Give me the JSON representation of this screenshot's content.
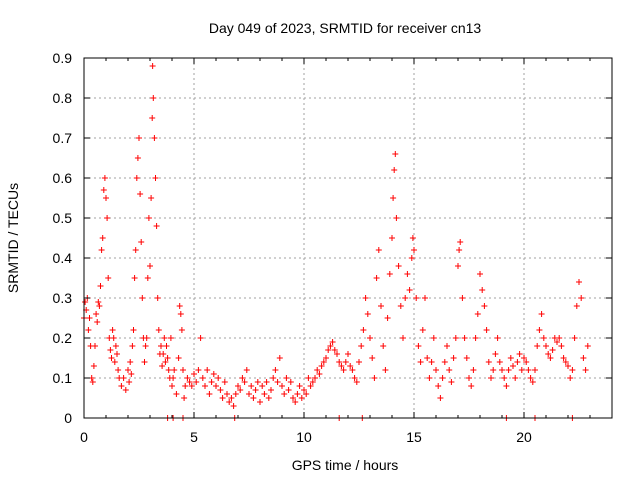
{
  "chart_data": {
    "type": "scatter",
    "title": "Day 049 of 2023, SRMTID for receiver cn13",
    "xlabel": "GPS time / hours",
    "ylabel": "SRMTID / TECUs",
    "xlim": [
      0,
      24
    ],
    "ylim": [
      0,
      0.9
    ],
    "grid": true,
    "marker": "+",
    "colors": {
      "series": "#ff0000",
      "axis": "#000000",
      "grid": "#a0a0a0"
    },
    "x_ticks": [
      {
        "value": 0,
        "label": "0"
      },
      {
        "value": 5,
        "label": "5"
      },
      {
        "value": 10,
        "label": "10"
      },
      {
        "value": 15,
        "label": "15"
      },
      {
        "value": 20,
        "label": "20"
      }
    ],
    "y_ticks": [
      {
        "value": 0,
        "label": "0"
      },
      {
        "value": 0.1,
        "label": "0.1"
      },
      {
        "value": 0.2,
        "label": "0.2"
      },
      {
        "value": 0.3,
        "label": "0.3"
      },
      {
        "value": 0.4,
        "label": "0.4"
      },
      {
        "value": 0.5,
        "label": "0.5"
      },
      {
        "value": 0.6,
        "label": "0.6"
      },
      {
        "value": 0.7,
        "label": "0.7"
      },
      {
        "value": 0.8,
        "label": "0.8"
      },
      {
        "value": 0.9,
        "label": "0.9"
      }
    ],
    "series": [
      {
        "name": "SRMTID",
        "points": [
          [
            0.0,
            0.25
          ],
          [
            0.05,
            0.29
          ],
          [
            0.1,
            0.27
          ],
          [
            0.15,
            0.3
          ],
          [
            0.2,
            0.22
          ],
          [
            0.25,
            0.25
          ],
          [
            0.3,
            0.18
          ],
          [
            0.35,
            0.1
          ],
          [
            0.4,
            0.09
          ],
          [
            0.45,
            0.13
          ],
          [
            0.5,
            0.18
          ],
          [
            0.55,
            0.26
          ],
          [
            0.6,
            0.24
          ],
          [
            0.65,
            0.29
          ],
          [
            0.7,
            0.28
          ],
          [
            0.75,
            0.33
          ],
          [
            0.8,
            0.42
          ],
          [
            0.85,
            0.45
          ],
          [
            0.9,
            0.57
          ],
          [
            0.95,
            0.6
          ],
          [
            1.0,
            0.55
          ],
          [
            1.05,
            0.5
          ],
          [
            1.1,
            0.35
          ],
          [
            1.15,
            0.2
          ],
          [
            1.2,
            0.17
          ],
          [
            1.25,
            0.15
          ],
          [
            1.3,
            0.22
          ],
          [
            1.35,
            0.2
          ],
          [
            1.4,
            0.14
          ],
          [
            1.45,
            0.18
          ],
          [
            1.5,
            0.16
          ],
          [
            1.55,
            0.12
          ],
          [
            1.6,
            0.1
          ],
          [
            1.7,
            0.08
          ],
          [
            1.8,
            0.1
          ],
          [
            1.9,
            0.07
          ],
          [
            2.0,
            0.12
          ],
          [
            2.05,
            0.09
          ],
          [
            2.1,
            0.14
          ],
          [
            2.15,
            0.11
          ],
          [
            2.2,
            0.18
          ],
          [
            2.25,
            0.22
          ],
          [
            2.3,
            0.35
          ],
          [
            2.35,
            0.42
          ],
          [
            2.4,
            0.6
          ],
          [
            2.45,
            0.65
          ],
          [
            2.5,
            0.7
          ],
          [
            2.55,
            0.56
          ],
          [
            2.6,
            0.44
          ],
          [
            2.65,
            0.3
          ],
          [
            2.7,
            0.2
          ],
          [
            2.75,
            0.14
          ],
          [
            2.8,
            0.18
          ],
          [
            2.85,
            0.2
          ],
          [
            2.9,
            0.35
          ],
          [
            2.95,
            0.5
          ],
          [
            3.0,
            0.38
          ],
          [
            3.05,
            0.55
          ],
          [
            3.1,
            0.75
          ],
          [
            3.12,
            0.88
          ],
          [
            3.15,
            0.8
          ],
          [
            3.2,
            0.7
          ],
          [
            3.25,
            0.6
          ],
          [
            3.3,
            0.48
          ],
          [
            3.35,
            0.3
          ],
          [
            3.4,
            0.22
          ],
          [
            3.45,
            0.16
          ],
          [
            3.5,
            0.18
          ],
          [
            3.55,
            0.13
          ],
          [
            3.6,
            0.16
          ],
          [
            3.65,
            0.2
          ],
          [
            3.7,
            0.14
          ],
          [
            3.75,
            0.18
          ],
          [
            3.8,
            0.15
          ],
          [
            3.85,
            0.12
          ],
          [
            3.9,
            0.1
          ],
          [
            3.95,
            0.2
          ],
          [
            4.0,
            0.08
          ],
          [
            4.05,
            0.1
          ],
          [
            4.1,
            0.12
          ],
          [
            4.2,
            0.06
          ],
          [
            4.3,
            0.15
          ],
          [
            4.35,
            0.28
          ],
          [
            4.4,
            0.26
          ],
          [
            4.45,
            0.22
          ],
          [
            4.5,
            0.12
          ],
          [
            4.55,
            0.05
          ],
          [
            4.6,
            0.08
          ],
          [
            4.7,
            0.1
          ],
          [
            4.8,
            0.09
          ],
          [
            4.9,
            0.08
          ],
          [
            5.0,
            0.11
          ],
          [
            5.1,
            0.09
          ],
          [
            5.2,
            0.12
          ],
          [
            5.3,
            0.2
          ],
          [
            5.4,
            0.1
          ],
          [
            5.5,
            0.08
          ],
          [
            5.6,
            0.12
          ],
          [
            5.7,
            0.06
          ],
          [
            5.8,
            0.09
          ],
          [
            5.9,
            0.11
          ],
          [
            6.0,
            0.08
          ],
          [
            6.1,
            0.1
          ],
          [
            6.2,
            0.07
          ],
          [
            6.3,
            0.05
          ],
          [
            6.4,
            0.09
          ],
          [
            6.5,
            0.06
          ],
          [
            6.6,
            0.04
          ],
          [
            6.7,
            0.05
          ],
          [
            6.8,
            0.03
          ],
          [
            6.9,
            0.06
          ],
          [
            7.0,
            0.08
          ],
          [
            7.1,
            0.07
          ],
          [
            7.2,
            0.1
          ],
          [
            7.3,
            0.09
          ],
          [
            7.4,
            0.12
          ],
          [
            7.5,
            0.06
          ],
          [
            7.6,
            0.08
          ],
          [
            7.7,
            0.05
          ],
          [
            7.8,
            0.07
          ],
          [
            7.9,
            0.09
          ],
          [
            8.0,
            0.04
          ],
          [
            8.1,
            0.08
          ],
          [
            8.2,
            0.06
          ],
          [
            8.3,
            0.09
          ],
          [
            8.4,
            0.05
          ],
          [
            8.5,
            0.07
          ],
          [
            8.6,
            0.1
          ],
          [
            8.7,
            0.12
          ],
          [
            8.8,
            0.09
          ],
          [
            8.9,
            0.15
          ],
          [
            9.0,
            0.08
          ],
          [
            9.1,
            0.06
          ],
          [
            9.2,
            0.1
          ],
          [
            9.3,
            0.07
          ],
          [
            9.4,
            0.09
          ],
          [
            9.5,
            0.05
          ],
          [
            9.6,
            0.04
          ],
          [
            9.7,
            0.06
          ],
          [
            9.8,
            0.08
          ],
          [
            9.9,
            0.05
          ],
          [
            10.0,
            0.07
          ],
          [
            10.1,
            0.06
          ],
          [
            10.2,
            0.1
          ],
          [
            10.3,
            0.08
          ],
          [
            10.4,
            0.09
          ],
          [
            10.5,
            0.1
          ],
          [
            10.6,
            0.12
          ],
          [
            10.7,
            0.11
          ],
          [
            10.8,
            0.13
          ],
          [
            10.9,
            0.14
          ],
          [
            11.0,
            0.15
          ],
          [
            11.1,
            0.17
          ],
          [
            11.2,
            0.18
          ],
          [
            11.3,
            0.19
          ],
          [
            11.4,
            0.17
          ],
          [
            11.5,
            0.16
          ],
          [
            11.6,
            0.14
          ],
          [
            11.7,
            0.13
          ],
          [
            11.8,
            0.12
          ],
          [
            11.9,
            0.14
          ],
          [
            12.0,
            0.16
          ],
          [
            12.1,
            0.13
          ],
          [
            12.2,
            0.12
          ],
          [
            12.3,
            0.1
          ],
          [
            12.4,
            0.09
          ],
          [
            12.5,
            0.14
          ],
          [
            12.6,
            0.18
          ],
          [
            12.7,
            0.22
          ],
          [
            12.8,
            0.3
          ],
          [
            12.9,
            0.26
          ],
          [
            13.0,
            0.2
          ],
          [
            13.1,
            0.15
          ],
          [
            13.2,
            0.1
          ],
          [
            13.3,
            0.35
          ],
          [
            13.4,
            0.42
          ],
          [
            13.5,
            0.28
          ],
          [
            13.6,
            0.18
          ],
          [
            13.7,
            0.12
          ],
          [
            13.8,
            0.25
          ],
          [
            13.9,
            0.36
          ],
          [
            14.0,
            0.45
          ],
          [
            14.05,
            0.55
          ],
          [
            14.1,
            0.62
          ],
          [
            14.15,
            0.66
          ],
          [
            14.2,
            0.5
          ],
          [
            14.3,
            0.38
          ],
          [
            14.4,
            0.28
          ],
          [
            14.5,
            0.2
          ],
          [
            14.6,
            0.3
          ],
          [
            14.7,
            0.36
          ],
          [
            14.8,
            0.32
          ],
          [
            14.9,
            0.4
          ],
          [
            14.95,
            0.45
          ],
          [
            15.0,
            0.42
          ],
          [
            15.1,
            0.3
          ],
          [
            15.2,
            0.18
          ],
          [
            15.3,
            0.14
          ],
          [
            15.4,
            0.22
          ],
          [
            15.5,
            0.3
          ],
          [
            15.6,
            0.15
          ],
          [
            15.7,
            0.1
          ],
          [
            15.8,
            0.14
          ],
          [
            15.9,
            0.2
          ],
          [
            16.0,
            0.12
          ],
          [
            16.1,
            0.08
          ],
          [
            16.2,
            0.05
          ],
          [
            16.3,
            0.1
          ],
          [
            16.4,
            0.14
          ],
          [
            16.5,
            0.18
          ],
          [
            16.6,
            0.12
          ],
          [
            16.7,
            0.09
          ],
          [
            16.8,
            0.15
          ],
          [
            16.9,
            0.2
          ],
          [
            17.0,
            0.38
          ],
          [
            17.05,
            0.42
          ],
          [
            17.1,
            0.44
          ],
          [
            17.2,
            0.3
          ],
          [
            17.3,
            0.2
          ],
          [
            17.4,
            0.15
          ],
          [
            17.5,
            0.1
          ],
          [
            17.6,
            0.08
          ],
          [
            17.7,
            0.12
          ],
          [
            17.8,
            0.2
          ],
          [
            17.9,
            0.26
          ],
          [
            18.0,
            0.36
          ],
          [
            18.1,
            0.32
          ],
          [
            18.2,
            0.28
          ],
          [
            18.3,
            0.22
          ],
          [
            18.4,
            0.14
          ],
          [
            18.5,
            0.1
          ],
          [
            18.6,
            0.12
          ],
          [
            18.7,
            0.16
          ],
          [
            18.8,
            0.2
          ],
          [
            18.9,
            0.14
          ],
          [
            19.0,
            0.12
          ],
          [
            19.1,
            0.1
          ],
          [
            19.2,
            0.08
          ],
          [
            19.3,
            0.12
          ],
          [
            19.4,
            0.15
          ],
          [
            19.5,
            0.13
          ],
          [
            19.6,
            0.1
          ],
          [
            19.7,
            0.14
          ],
          [
            19.8,
            0.16
          ],
          [
            19.9,
            0.12
          ],
          [
            20.0,
            0.15
          ],
          [
            20.1,
            0.14
          ],
          [
            20.2,
            0.12
          ],
          [
            20.3,
            0.1
          ],
          [
            20.4,
            0.09
          ],
          [
            20.5,
            0.12
          ],
          [
            20.6,
            0.18
          ],
          [
            20.7,
            0.22
          ],
          [
            20.8,
            0.26
          ],
          [
            20.9,
            0.2
          ],
          [
            21.0,
            0.18
          ],
          [
            21.1,
            0.16
          ],
          [
            21.2,
            0.15
          ],
          [
            21.3,
            0.17
          ],
          [
            21.4,
            0.2
          ],
          [
            21.5,
            0.19
          ],
          [
            21.6,
            0.2
          ],
          [
            21.7,
            0.18
          ],
          [
            21.8,
            0.15
          ],
          [
            21.9,
            0.14
          ],
          [
            22.0,
            0.13
          ],
          [
            22.1,
            0.1
          ],
          [
            22.2,
            0.12
          ],
          [
            22.3,
            0.2
          ],
          [
            22.4,
            0.28
          ],
          [
            22.5,
            0.34
          ],
          [
            22.6,
            0.3
          ],
          [
            22.7,
            0.15
          ],
          [
            22.8,
            0.12
          ],
          [
            22.9,
            0.18
          ]
        ]
      }
    ],
    "baseline_gaps_hours": [
      3.8,
      4.05,
      4.5,
      6.85,
      11.6,
      12.65,
      19.2,
      20.5,
      22.2
    ]
  }
}
